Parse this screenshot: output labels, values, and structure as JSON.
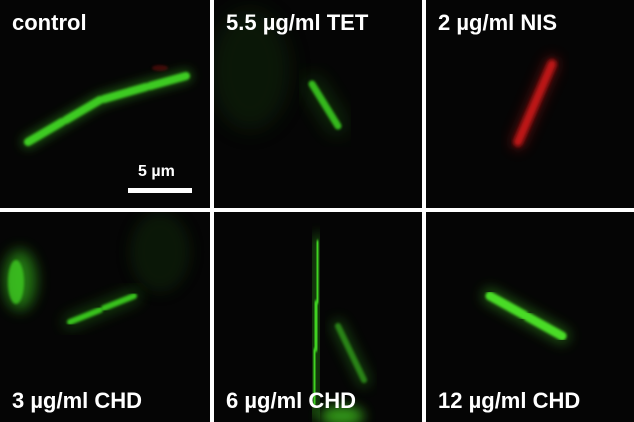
{
  "panels": [
    {
      "label": "control",
      "cell_color": "#3ecb22"
    },
    {
      "label": "5.5 µg/ml TET",
      "cell_color": "#34b81e"
    },
    {
      "label": "2 µg/ml NIS",
      "cell_color": "#c01818"
    },
    {
      "label": "3 µg/ml CHD",
      "cell_color": "#37c21f"
    },
    {
      "label": "6 µg/ml CHD",
      "cell_color": "#3fd324"
    },
    {
      "label": "12 µg/ml CHD",
      "cell_color": "#49dc26"
    }
  ],
  "scale_bar": {
    "text": "5 µm"
  },
  "background_color": "#050505",
  "border_color": "#ffffff"
}
